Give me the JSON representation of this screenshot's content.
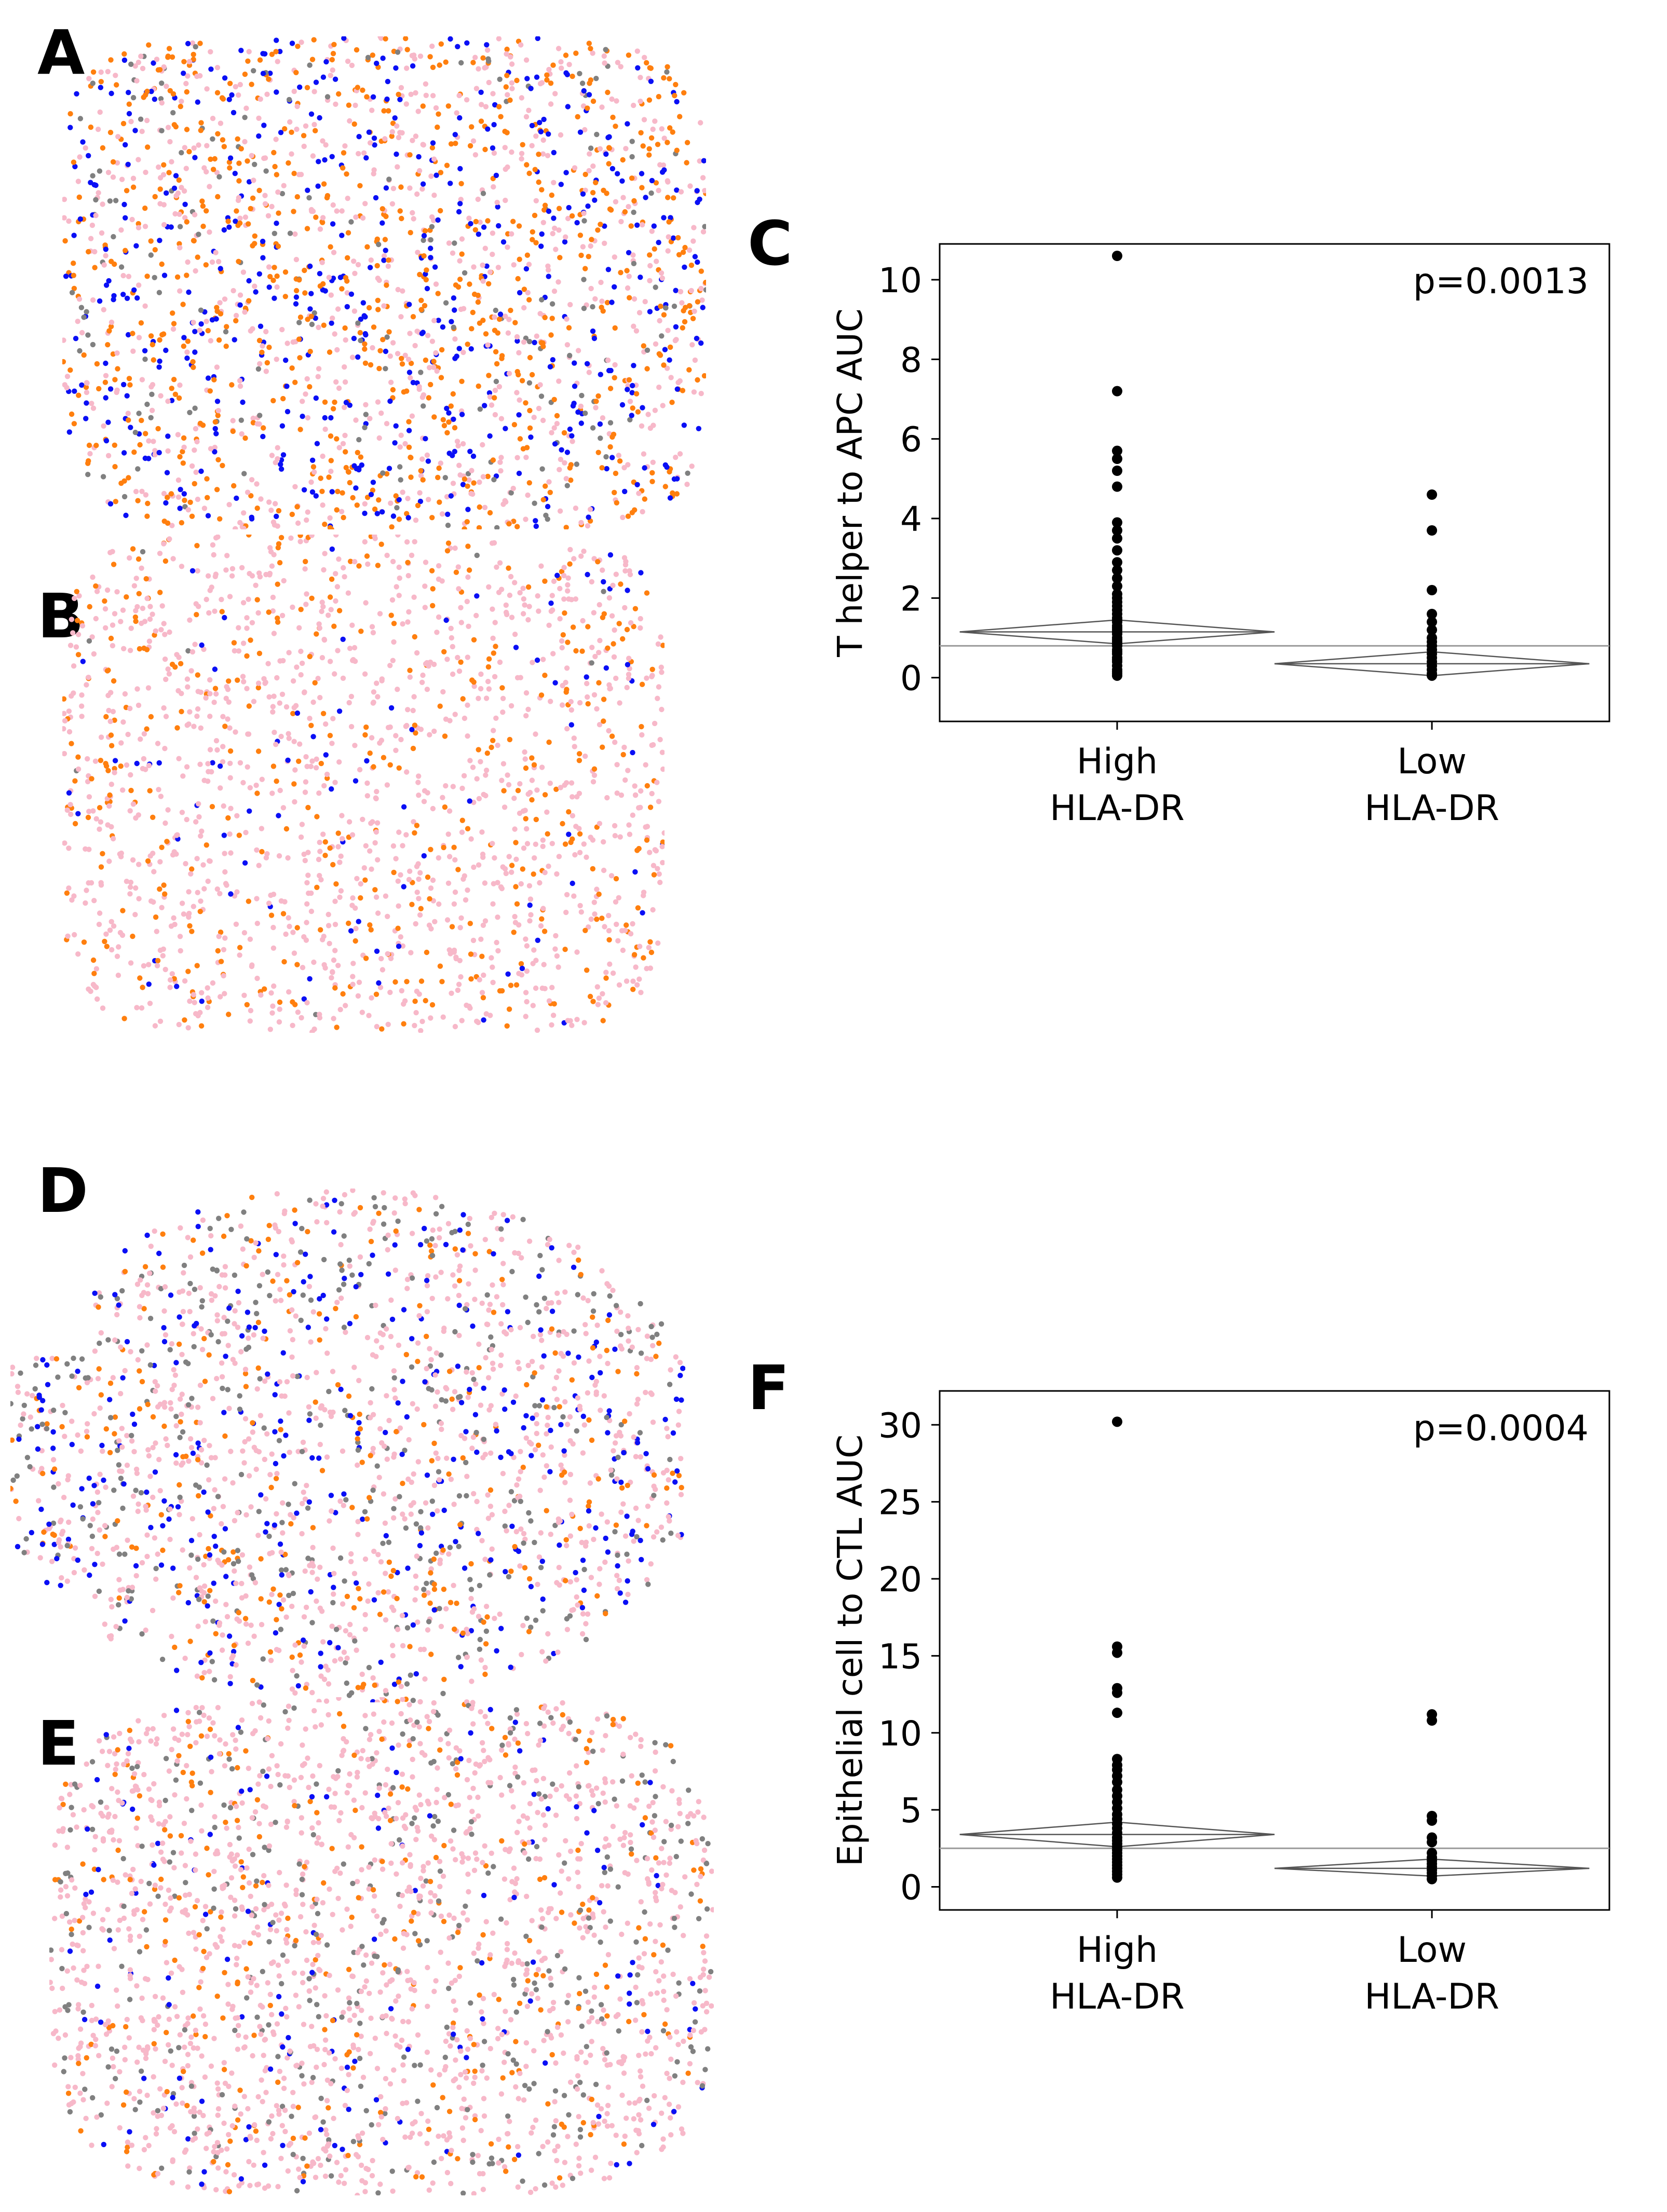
{
  "panels": {
    "a": "A",
    "b": "B",
    "c": "C",
    "d": "D",
    "e": "E",
    "f": "F"
  },
  "cell_colors": {
    "pink": "#f7b8c9",
    "orange": "#ff7f0e",
    "blue": "#0a0ff5",
    "gray": "#808080"
  },
  "tissue_maps": [
    {
      "id": "A",
      "mix": {
        "pink": 0.36,
        "orange": 0.34,
        "blue": 0.22,
        "gray": 0.08
      }
    },
    {
      "id": "B",
      "mix": {
        "pink": 0.7,
        "orange": 0.23,
        "blue": 0.06,
        "gray": 0.01
      }
    },
    {
      "id": "D",
      "mix": {
        "pink": 0.5,
        "orange": 0.14,
        "blue": 0.17,
        "gray": 0.19
      }
    },
    {
      "id": "E",
      "mix": {
        "pink": 0.66,
        "orange": 0.12,
        "blue": 0.06,
        "gray": 0.16
      }
    }
  ],
  "chart_data": [
    {
      "type": "scatter",
      "panel": "C",
      "title": "",
      "xlabel": "",
      "ylabel": "T helper to APC AUC",
      "ylim": [
        -1.1,
        10.9
      ],
      "yticks": [
        0,
        2,
        4,
        6,
        8,
        10
      ],
      "categories": [
        {
          "line1": "High",
          "line2": "HLA-DR"
        },
        {
          "line1": "Low",
          "line2": "HLA-DR"
        }
      ],
      "p_value": "p=0.0013",
      "grand_mean": 0.8,
      "groups": [
        {
          "name": "High HLA-DR",
          "mean": 1.15,
          "ci_low": 0.85,
          "ci_high": 1.45,
          "values": [
            10.6,
            7.2,
            5.7,
            5.5,
            5.2,
            4.8,
            3.9,
            3.7,
            3.5,
            3.2,
            2.9,
            2.7,
            2.5,
            2.3,
            2.1,
            2.0,
            1.9,
            1.8,
            1.7,
            1.6,
            1.5,
            1.45,
            1.4,
            1.3,
            1.25,
            1.2,
            1.15,
            1.1,
            1.0,
            0.95,
            0.9,
            0.85,
            0.8,
            0.7,
            0.65,
            0.6,
            0.5,
            0.45,
            0.4,
            0.3,
            0.2,
            0.15,
            0.1,
            0.05
          ]
        },
        {
          "name": "Low HLA-DR",
          "mean": 0.35,
          "ci_low": 0.05,
          "ci_high": 0.65,
          "values": [
            4.6,
            3.7,
            2.2,
            1.6,
            1.4,
            1.2,
            1.0,
            0.9,
            0.8,
            0.7,
            0.6,
            0.5,
            0.4,
            0.3,
            0.2,
            0.1,
            0.05
          ]
        }
      ]
    },
    {
      "type": "scatter",
      "panel": "F",
      "title": "",
      "xlabel": "",
      "ylabel": "Epithelial cell to CTL AUC",
      "ylim": [
        -1.5,
        32.2
      ],
      "yticks": [
        0,
        5,
        10,
        15,
        20,
        25,
        30
      ],
      "categories": [
        {
          "line1": "High",
          "line2": "HLA-DR"
        },
        {
          "line1": "Low",
          "line2": "HLA-DR"
        }
      ],
      "p_value": "p=0.0004",
      "grand_mean": 2.5,
      "groups": [
        {
          "name": "High HLA-DR",
          "mean": 3.4,
          "ci_low": 2.6,
          "ci_high": 4.2,
          "values": [
            30.2,
            15.6,
            15.2,
            12.9,
            12.6,
            11.3,
            8.3,
            7.9,
            7.6,
            7.2,
            6.8,
            6.3,
            5.9,
            5.5,
            5.1,
            4.7,
            4.4,
            4.1,
            3.8,
            3.5,
            3.2,
            3.0,
            2.8,
            2.6,
            2.4,
            2.2,
            2.0,
            1.8,
            1.6,
            1.4,
            1.2,
            1.0,
            0.8,
            0.6
          ]
        },
        {
          "name": "Low HLA-DR",
          "mean": 1.2,
          "ci_low": 0.7,
          "ci_high": 1.8,
          "values": [
            11.2,
            10.8,
            4.6,
            4.3,
            3.2,
            2.9,
            2.2,
            1.9,
            1.7,
            1.5,
            1.3,
            1.1,
            0.9,
            0.7,
            0.5
          ]
        }
      ]
    }
  ]
}
